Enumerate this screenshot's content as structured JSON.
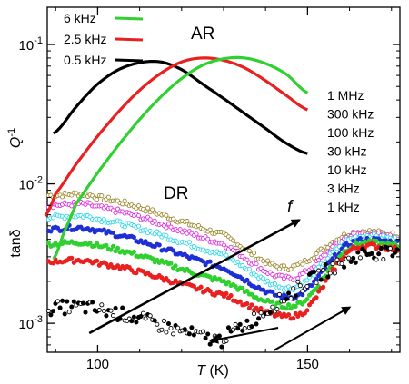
{
  "chart_data": {
    "type": "scatter",
    "xlabel_main": "T",
    "xlabel_unit": " (K)",
    "ylabel_left_top_main": "Q",
    "ylabel_left_top_sup": "-1",
    "ylabel_left_bottom": "tanδ",
    "x_range": [
      88,
      172
    ],
    "y_range": [
      0.00062,
      0.185
    ],
    "y_scale": "log",
    "x_ticks": [
      100,
      150
    ],
    "x_tick_labels": [
      "100",
      "150"
    ],
    "y_ticks": [
      0.001,
      0.01,
      0.1
    ],
    "y_tick_labels": [
      {
        "base": "10",
        "exp": "-3"
      },
      {
        "base": "10",
        "exp": "-2"
      },
      {
        "base": "10",
        "exp": "-1"
      }
    ],
    "colors": {
      "black": "#000000",
      "red": "#e8201f",
      "green": "#2fd02f",
      "blue": "#1f2fd6",
      "magenta": "#e030e0",
      "cyan": "#30d8e8",
      "olive": "#9a8a30"
    },
    "annotations": {
      "ar": "AR",
      "dr": "DR",
      "f": "f"
    },
    "ar_legend": [
      {
        "label": "6   kHz",
        "color": "#2fd02f"
      },
      {
        "label": "2.5 kHz",
        "color": "#e8201f"
      },
      {
        "label": "0.5 kHz",
        "color": "#000000"
      }
    ],
    "dr_legend": [
      "1 MHz",
      "300 kHz",
      "100 kHz",
      "30 kHz",
      "10 kHz",
      "3 kHz",
      "1 kHz"
    ],
    "ar_series": [
      {
        "name": "0.5 kHz",
        "color": "#000000",
        "x": [
          89.5,
          95,
          100,
          105,
          110,
          115,
          120,
          125,
          130,
          135,
          140,
          145,
          150
        ],
        "y": [
          0.023,
          0.036,
          0.052,
          0.066,
          0.074,
          0.075,
          0.066,
          0.052,
          0.041,
          0.032,
          0.025,
          0.0195,
          0.0165
        ]
      },
      {
        "name": "2.5 kHz",
        "color": "#e8201f",
        "x": [
          87.5,
          90,
          95,
          100,
          105,
          110,
          115,
          120,
          125,
          130,
          135,
          140,
          145,
          150
        ],
        "y": [
          0.0059,
          0.0085,
          0.014,
          0.022,
          0.033,
          0.047,
          0.062,
          0.075,
          0.08,
          0.077,
          0.068,
          0.055,
          0.043,
          0.034
        ]
      },
      {
        "name": "6 kHz",
        "color": "#2fd02f",
        "x": [
          89.5,
          92,
          95,
          100,
          105,
          110,
          115,
          120,
          125,
          130,
          135,
          140,
          145,
          150
        ],
        "y": [
          0.0029,
          0.0045,
          0.0073,
          0.012,
          0.019,
          0.029,
          0.042,
          0.057,
          0.071,
          0.079,
          0.08,
          0.073,
          0.061,
          0.045
        ]
      }
    ],
    "dr_series": [
      {
        "name": "1 MHz",
        "color": "#9a8a30",
        "fill": "open",
        "y100": 0.008,
        "y130": 0.0043,
        "ymin": 0.0025,
        "tmin": 145,
        "y160": 0.0044,
        "y172": 0.0043
      },
      {
        "name": "300 kHz",
        "color": "#e030e0",
        "fill": "open",
        "y100": 0.0068,
        "y130": 0.0037,
        "ymin": 0.0021,
        "tmin": 146,
        "y160": 0.0042,
        "y172": 0.0041
      },
      {
        "name": "100 kHz",
        "color": "#30d8e8",
        "fill": "open",
        "y100": 0.0056,
        "y130": 0.0031,
        "ymin": 0.0018,
        "tmin": 146.5,
        "y160": 0.004,
        "y172": 0.004
      },
      {
        "name": "30 kHz",
        "color": "#1f2fd6",
        "fill": "solid",
        "y100": 0.0046,
        "y130": 0.0025,
        "ymin": 0.00155,
        "tmin": 147,
        "y160": 0.0037,
        "y172": 0.0038
      },
      {
        "name": "10 kHz",
        "color": "#2fd02f",
        "fill": "solid",
        "y100": 0.0036,
        "y130": 0.002,
        "ymin": 0.00135,
        "tmin": 147.5,
        "y160": 0.0035,
        "y172": 0.0036
      },
      {
        "name": "3 kHz",
        "color": "#e8201f",
        "fill": "solid",
        "y100": 0.0027,
        "y130": 0.0016,
        "ymin": 0.00115,
        "tmin": 148,
        "y160": 0.0033,
        "y172": 0.0034
      },
      {
        "name": "1 kHz",
        "color": "#000000",
        "fill": "mixed",
        "y100": 0.00125,
        "y130": 0.00075,
        "ymin": 0.0007,
        "tmin": 125,
        "y160": 0.0028,
        "y172": 0.0031
      }
    ],
    "arrows": [
      {
        "from": [
          98,
          0.00085
        ],
        "to": [
          148,
          0.0055
        ]
      },
      {
        "from": [
          143,
          0.00093
        ],
        "to": [
          127,
          0.00075
        ]
      },
      {
        "from": [
          142,
          0.00064
        ],
        "to": [
          160,
          0.0013
        ]
      }
    ]
  }
}
